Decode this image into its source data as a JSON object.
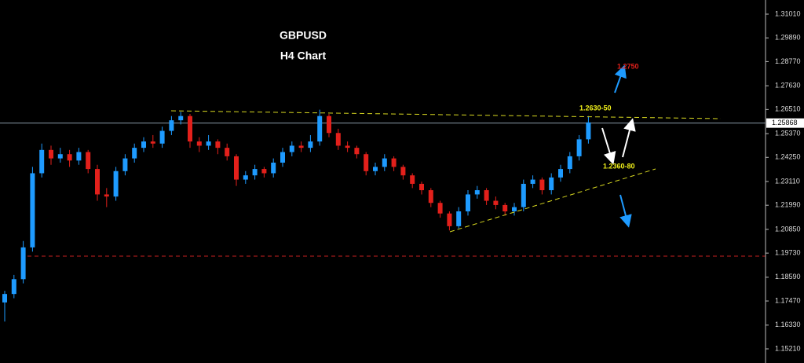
{
  "chart_data": {
    "type": "candlestick",
    "title": "GBPUSD",
    "subtitle": "H4 Chart",
    "annotations": [
      "1.2750",
      "1.2630-50",
      "1.2360-80"
    ],
    "up_color": "#1e9bff",
    "down_color": "#e3201b",
    "ylim": [
      1.14542,
      1.31678
    ],
    "yticks": [
      {
        "value": 1.3101,
        "label": "1.31010"
      },
      {
        "value": 1.2989,
        "label": "1.29890"
      },
      {
        "value": 1.2877,
        "label": "1.28770"
      },
      {
        "value": 1.2763,
        "label": "1.27630"
      },
      {
        "value": 1.2651,
        "label": "1.26510"
      },
      {
        "value": 1.2537,
        "label": "1.25370"
      },
      {
        "value": 1.2425,
        "label": "1.24250"
      },
      {
        "value": 1.2311,
        "label": "1.23110"
      },
      {
        "value": 1.2199,
        "label": "1.21990"
      },
      {
        "value": 1.2085,
        "label": "1.20850"
      },
      {
        "value": 1.1973,
        "label": "1.19730"
      },
      {
        "value": 1.1859,
        "label": "1.18590"
      },
      {
        "value": 1.1747,
        "label": "1.17470"
      },
      {
        "value": 1.1633,
        "label": "1.16330"
      },
      {
        "value": 1.1521,
        "label": "1.15210"
      }
    ],
    "current_price": 1.25868,
    "open": [
      1.174,
      1.178,
      1.185,
      1.2,
      1.235,
      1.246,
      1.242,
      1.244,
      1.241,
      1.245,
      1.237,
      1.225,
      1.224,
      1.236,
      1.242,
      1.247,
      1.25,
      1.249,
      1.255,
      1.26,
      1.262,
      1.25,
      1.248,
      1.25,
      1.247,
      1.243,
      1.232,
      1.234,
      1.237,
      1.235,
      1.24,
      1.245,
      1.248,
      1.247,
      1.25,
      1.262,
      1.254,
      1.248,
      1.247,
      1.244,
      1.236,
      1.238,
      1.242,
      1.238,
      1.234,
      1.23,
      1.227,
      1.221,
      1.216,
      1.21,
      1.217,
      1.225,
      1.227,
      1.222,
      1.22,
      1.217,
      1.219,
      1.23,
      1.232,
      1.227,
      1.233,
      1.237,
      1.243,
      1.251
    ],
    "high": [
      1.1795,
      1.187,
      1.203,
      1.238,
      1.249,
      1.248,
      1.247,
      1.246,
      1.247,
      1.246,
      1.239,
      1.228,
      1.238,
      1.244,
      1.249,
      1.252,
      1.253,
      1.257,
      1.262,
      1.264,
      1.263,
      1.252,
      1.253,
      1.251,
      1.249,
      1.244,
      1.236,
      1.239,
      1.238,
      1.242,
      1.247,
      1.25,
      1.25,
      1.253,
      1.265,
      1.263,
      1.256,
      1.25,
      1.248,
      1.245,
      1.24,
      1.244,
      1.243,
      1.239,
      1.235,
      1.231,
      1.228,
      1.222,
      1.217,
      1.219,
      1.227,
      1.229,
      1.228,
      1.224,
      1.221,
      1.221,
      1.232,
      1.234,
      1.233,
      1.235,
      1.239,
      1.245,
      1.253,
      1.262
    ],
    "low": [
      1.165,
      1.176,
      1.183,
      1.198,
      1.233,
      1.239,
      1.24,
      1.238,
      1.239,
      1.235,
      1.222,
      1.219,
      1.222,
      1.234,
      1.24,
      1.245,
      1.247,
      1.247,
      1.253,
      1.258,
      1.247,
      1.245,
      1.246,
      1.244,
      1.241,
      1.229,
      1.23,
      1.232,
      1.233,
      1.233,
      1.238,
      1.243,
      1.245,
      1.245,
      1.248,
      1.252,
      1.246,
      1.245,
      1.242,
      1.234,
      1.234,
      1.236,
      1.236,
      1.232,
      1.228,
      1.225,
      1.219,
      1.214,
      1.208,
      1.209,
      1.215,
      1.223,
      1.22,
      1.218,
      1.215,
      1.215,
      1.217,
      1.228,
      1.225,
      1.225,
      1.231,
      1.235,
      1.241,
      1.249
    ],
    "close": [
      1.178,
      1.185,
      1.2,
      1.235,
      1.246,
      1.242,
      1.244,
      1.241,
      1.245,
      1.237,
      1.225,
      1.224,
      1.236,
      1.242,
      1.247,
      1.25,
      1.249,
      1.255,
      1.26,
      1.262,
      1.25,
      1.248,
      1.25,
      1.247,
      1.243,
      1.232,
      1.234,
      1.237,
      1.235,
      1.24,
      1.245,
      1.248,
      1.247,
      1.25,
      1.262,
      1.254,
      1.248,
      1.247,
      1.244,
      1.236,
      1.238,
      1.242,
      1.238,
      1.234,
      1.23,
      1.227,
      1.221,
      1.216,
      1.21,
      1.217,
      1.225,
      1.227,
      1.222,
      1.22,
      1.217,
      1.219,
      1.23,
      1.232,
      1.227,
      1.233,
      1.237,
      1.243,
      1.251,
      1.259
    ]
  }
}
